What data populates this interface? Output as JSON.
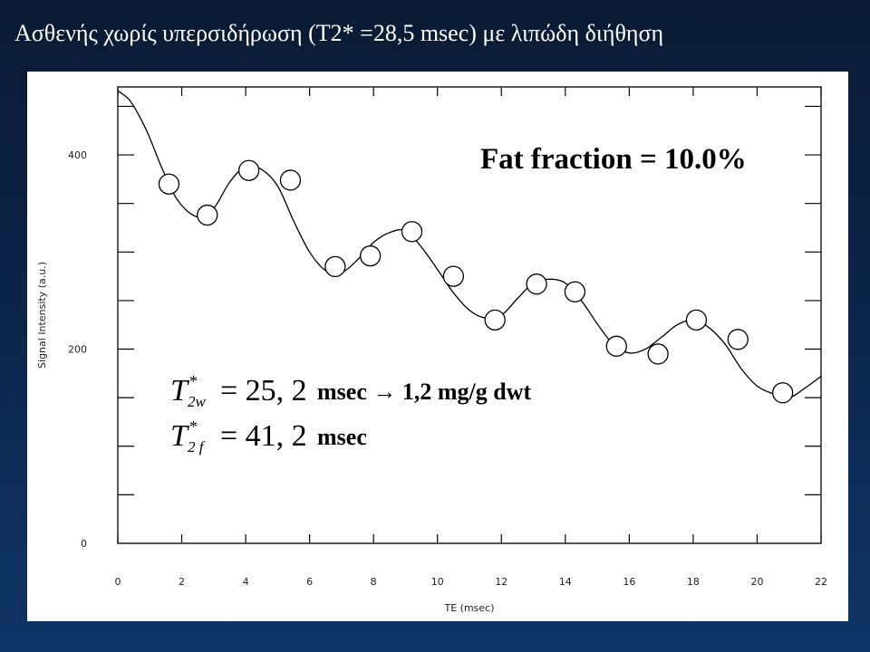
{
  "slide": {
    "title": "Ασθενής χωρίς υπερσιδήρωση (T2* =28,5 msec)  με λιπώδη διήθηση"
  },
  "annotations": {
    "fat_fraction": "Fat fraction = 10.0%",
    "t2w": {
      "symbol": "T",
      "sup": "*",
      "sub": "2w",
      "equals": "= 25, 2",
      "unit": "msec → 1,2 mg/g dwt"
    },
    "t2f": {
      "symbol": "T",
      "sup": "*",
      "sub": "2 f",
      "equals": "= 41, 2",
      "unit": "msec"
    }
  },
  "chart_data": {
    "type": "scatter",
    "title": "",
    "xlabel": "TE (msec)",
    "ylabel": "Signal Intensity (a.u.)",
    "xlim": [
      0,
      22
    ],
    "ylim": [
      0,
      470
    ],
    "xticks": [
      0,
      2,
      4,
      6,
      8,
      10,
      12,
      14,
      16,
      18,
      20,
      22
    ],
    "yticks": [
      0,
      200,
      400
    ],
    "series": [
      {
        "kind": "points",
        "x": [
          1.6,
          2.8,
          4.1,
          5.4,
          6.8,
          7.9,
          9.2,
          10.5,
          11.8,
          13.1,
          14.3,
          15.6,
          16.9,
          18.1,
          19.4,
          20.8
        ],
        "y": [
          370,
          338,
          384,
          374,
          285,
          296,
          321,
          275,
          230,
          267,
          259,
          203,
          195,
          230,
          210,
          155
        ]
      },
      {
        "kind": "fit",
        "x": [
          0,
          0.4,
          0.9,
          1.4,
          1.9,
          2.5,
          3.0,
          3.5,
          4.0,
          4.5,
          5.0,
          5.5,
          6.0,
          6.5,
          7.0,
          7.5,
          8.0,
          8.5,
          9.0,
          9.5,
          10.0,
          10.5,
          11.0,
          11.5,
          12.0,
          12.5,
          13.0,
          13.5,
          14.0,
          14.5,
          15.0,
          15.5,
          16.0,
          16.5,
          17.0,
          17.5,
          18.0,
          18.5,
          19.0,
          19.5,
          20.0,
          20.5,
          21.0,
          21.5,
          22.0
        ],
        "y": [
          466,
          455,
          425,
          385,
          352,
          336,
          345,
          372,
          388,
          385,
          368,
          332,
          300,
          281,
          279,
          292,
          310,
          320,
          322,
          305,
          282,
          258,
          240,
          232,
          235,
          252,
          268,
          272,
          268,
          250,
          226,
          205,
          196,
          200,
          212,
          225,
          230,
          222,
          205,
          180,
          162,
          154,
          150,
          160,
          172
        ]
      }
    ]
  }
}
